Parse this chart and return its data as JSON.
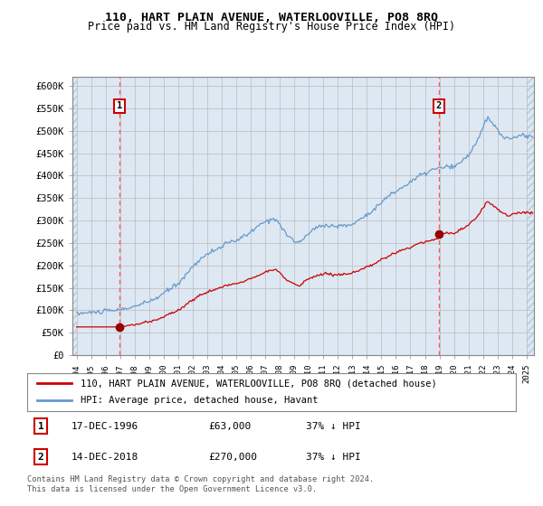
{
  "title": "110, HART PLAIN AVENUE, WATERLOOVILLE, PO8 8RQ",
  "subtitle": "Price paid vs. HM Land Registry's House Price Index (HPI)",
  "legend_line1": "110, HART PLAIN AVENUE, WATERLOOVILLE, PO8 8RQ (detached house)",
  "legend_line2": "HPI: Average price, detached house, Havant",
  "table_row1_date": "17-DEC-1996",
  "table_row1_price": "£63,000",
  "table_row1_hpi": "37% ↓ HPI",
  "table_row2_date": "14-DEC-2018",
  "table_row2_price": "£270,000",
  "table_row2_hpi": "37% ↓ HPI",
  "footnote": "Contains HM Land Registry data © Crown copyright and database right 2024.\nThis data is licensed under the Open Government Licence v3.0.",
  "sale1_year": 1996.96,
  "sale1_price": 63000,
  "sale2_year": 2018.96,
  "sale2_price": 270000,
  "ylabel_ticks": [
    "£0",
    "£50K",
    "£100K",
    "£150K",
    "£200K",
    "£250K",
    "£300K",
    "£350K",
    "£400K",
    "£450K",
    "£500K",
    "£550K",
    "£600K"
  ],
  "ytick_values": [
    0,
    50000,
    100000,
    150000,
    200000,
    250000,
    300000,
    350000,
    400000,
    450000,
    500000,
    550000,
    600000
  ],
  "hatch_color": "#c8d8e8",
  "grid_color": "#bbbbbb",
  "plot_bg_color": "#dde8f3",
  "red_line_color": "#cc0000",
  "blue_line_color": "#6699cc",
  "marker_color": "#990000",
  "vline_color": "#ff5555",
  "box_color": "#cc0000",
  "xmin": 1993.7,
  "xmax": 2025.5,
  "ymin": 0,
  "ymax": 620000
}
